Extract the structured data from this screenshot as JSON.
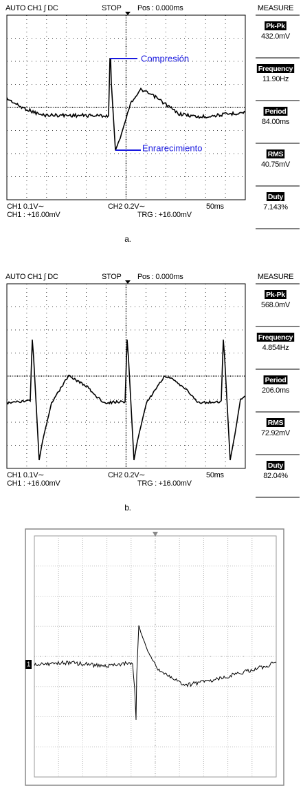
{
  "panels": [
    {
      "header": {
        "mode": "AUTO CH1 ∫ DC",
        "state": "STOP",
        "position": "Pos : 0.000ms"
      },
      "measure": {
        "title": "MEASURE",
        "items": [
          {
            "label": "Pk-Pk",
            "value": "432.0mV"
          },
          {
            "label": "Frequency",
            "value": "11.90Hz"
          },
          {
            "label": "Period",
            "value": "84.00ms"
          },
          {
            "label": "RMS",
            "value": "40.75mV"
          },
          {
            "label": "Duty",
            "value": "7.143%"
          }
        ]
      },
      "footer": {
        "ch1_scale": "CH1 0.1V∼",
        "ch1_offset": "CH1 : +16.00mV",
        "ch2_scale": "CH2 0.2V∼",
        "trigger": "TRG : +16.00mV",
        "timebase": "50ms"
      },
      "annotations": [
        "Compresión",
        "Enrarecimiento"
      ],
      "caption": "a."
    },
    {
      "header": {
        "mode": "AUTO CH1 ∫ DC",
        "state": "STOP",
        "position": "Pos : 0.000ms"
      },
      "measure": {
        "title": "MEASURE",
        "items": [
          {
            "label": "Pk-Pk",
            "value": "568.0mV"
          },
          {
            "label": "Frequency",
            "value": "4.854Hz"
          },
          {
            "label": "Period",
            "value": "206.0ms"
          },
          {
            "label": "RMS",
            "value": "72.92mV"
          },
          {
            "label": "Duty",
            "value": "82.04%"
          }
        ]
      },
      "footer": {
        "ch1_scale": "CH1 0.1V∼",
        "ch1_offset": "CH1 : +16.00mV",
        "ch2_scale": "CH2 0.2V∼",
        "trigger": "TRG : +16.00mV",
        "timebase": "50ms"
      },
      "caption": "b."
    }
  ],
  "scope_c": {
    "channel_marker": "1"
  }
}
